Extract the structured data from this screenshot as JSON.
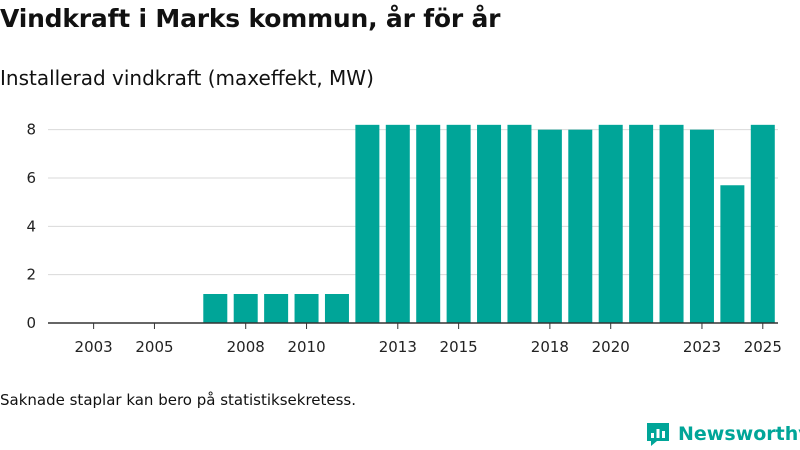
{
  "title": "Vindkraft i Marks kommun, år för år",
  "subtitle": "Installerad vindkraft (maxeffekt, MW)",
  "footnote": "Saknade staplar kan bero på statistiksekretess.",
  "brand": {
    "name": "Newsworthy",
    "icon": "newsworthy-logo-icon"
  },
  "colors": {
    "bar": "#00a598",
    "grid": "#d9d9d9",
    "axis": "#333333",
    "brand": "#00a598"
  },
  "chart_data": {
    "type": "bar",
    "title": "Vindkraft i Marks kommun, år för år",
    "ylabel": "Installerad vindkraft (maxeffekt, MW)",
    "xlabel": "",
    "categories": [
      2002,
      2003,
      2004,
      2005,
      2006,
      2007,
      2008,
      2009,
      2010,
      2011,
      2012,
      2013,
      2014,
      2015,
      2016,
      2017,
      2018,
      2019,
      2020,
      2021,
      2022,
      2023,
      2024,
      2025
    ],
    "values": [
      null,
      null,
      null,
      null,
      null,
      1.2,
      1.2,
      1.2,
      1.2,
      1.2,
      8.2,
      8.2,
      8.2,
      8.2,
      8.2,
      8.2,
      8.0,
      8.0,
      8.2,
      8.2,
      8.2,
      8.0,
      5.7,
      8.2
    ],
    "xticks": [
      2003,
      2005,
      2008,
      2010,
      2013,
      2015,
      2018,
      2020,
      2023,
      2025
    ],
    "yticks": [
      0,
      2,
      4,
      6,
      8
    ],
    "ylim": [
      0,
      8.4
    ],
    "grid": true,
    "legend": "none"
  }
}
